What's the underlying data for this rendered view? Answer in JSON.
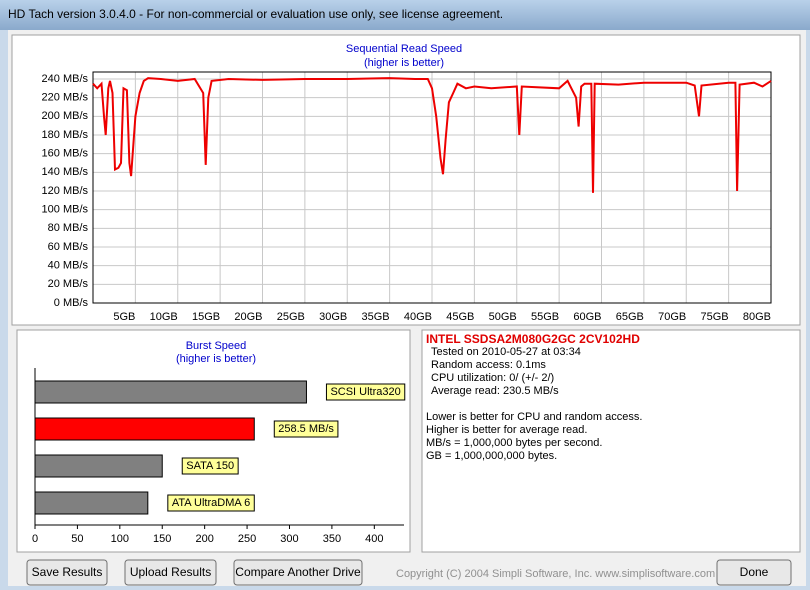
{
  "window": {
    "title": "HD Tach version 3.0.4.0  - For non-commercial or evaluation use only, see license agreement."
  },
  "chart_data": [
    {
      "type": "line",
      "title": "Sequential Read Speed",
      "subtitle": "(higher is better)",
      "color": "#ee0000",
      "grid": true,
      "x": [
        0,
        0.5,
        1,
        1.3,
        1.5,
        1.8,
        2,
        2.3,
        2.6,
        3,
        3.3,
        3.6,
        4,
        4.3,
        4.5,
        4.8,
        5,
        5.5,
        6,
        6.5,
        8,
        10,
        12,
        13,
        13.3,
        13.6,
        14,
        16,
        20,
        25,
        30,
        35,
        38,
        39.5,
        40,
        40.5,
        41,
        41.3,
        41.6,
        42,
        42.5,
        43,
        44,
        45,
        47,
        50,
        50.3,
        50.6,
        55,
        56,
        57,
        57.3,
        57.6,
        58,
        58.8,
        59,
        59.2,
        62,
        65,
        70,
        71,
        71.5,
        71.8,
        75,
        75.8,
        76,
        76.3,
        78,
        79,
        80
      ],
      "values": [
        235,
        230,
        235,
        200,
        180,
        230,
        238,
        225,
        143,
        145,
        150,
        230,
        228,
        150,
        136,
        175,
        200,
        225,
        238,
        241,
        240,
        238,
        240,
        225,
        148,
        220,
        238,
        240,
        239,
        240,
        240,
        241,
        240,
        240,
        230,
        200,
        155,
        138,
        175,
        215,
        225,
        235,
        230,
        232,
        230,
        232,
        180,
        232,
        230,
        238,
        220,
        189,
        232,
        235,
        235,
        118,
        235,
        234,
        236,
        236,
        233,
        200,
        233,
        236,
        236,
        120,
        234,
        236,
        232,
        238
      ],
      "xlim": [
        0,
        80
      ],
      "ylim": [
        0,
        247.5
      ],
      "xticks": [
        {
          "value": 5,
          "label": "5GB"
        },
        {
          "value": 10,
          "label": "10GB"
        },
        {
          "value": 15,
          "label": "15GB"
        },
        {
          "value": 20,
          "label": "20GB"
        },
        {
          "value": 25,
          "label": "25GB"
        },
        {
          "value": 30,
          "label": "30GB"
        },
        {
          "value": 35,
          "label": "35GB"
        },
        {
          "value": 40,
          "label": "40GB"
        },
        {
          "value": 45,
          "label": "45GB"
        },
        {
          "value": 50,
          "label": "50GB"
        },
        {
          "value": 55,
          "label": "55GB"
        },
        {
          "value": 60,
          "label": "60GB"
        },
        {
          "value": 65,
          "label": "65GB"
        },
        {
          "value": 70,
          "label": "70GB"
        },
        {
          "value": 75,
          "label": "75GB"
        },
        {
          "value": 80,
          "label": "80GB"
        }
      ],
      "yticks": [
        {
          "value": 0,
          "label": "0 MB/s"
        },
        {
          "value": 20,
          "label": "20 MB/s"
        },
        {
          "value": 40,
          "label": "40 MB/s"
        },
        {
          "value": 60,
          "label": "60 MB/s"
        },
        {
          "value": 80,
          "label": "80 MB/s"
        },
        {
          "value": 100,
          "label": "100 MB/s"
        },
        {
          "value": 120,
          "label": "120 MB/s"
        },
        {
          "value": 140,
          "label": "140 MB/s"
        },
        {
          "value": 160,
          "label": "160 MB/s"
        },
        {
          "value": 180,
          "label": "180 MB/s"
        },
        {
          "value": 200,
          "label": "200 MB/s"
        },
        {
          "value": 220,
          "label": "220 MB/s"
        },
        {
          "value": 240,
          "label": "240 MB/s"
        }
      ]
    },
    {
      "type": "barh",
      "title": "Burst Speed",
      "subtitle": "(higher is better)",
      "categories": [
        "SCSI Ultra320",
        null,
        "SATA 150",
        "ATA UltraDMA 6"
      ],
      "values": [
        320,
        258.5,
        150,
        133
      ],
      "value_labels": [
        null,
        "258.5 MB/s",
        null,
        null
      ],
      "colors": [
        "#808080",
        "#ff0000",
        "#808080",
        "#808080"
      ],
      "xlim": [
        0,
        435
      ],
      "xticks": [
        0,
        50,
        100,
        150,
        200,
        250,
        300,
        350,
        400
      ]
    }
  ],
  "info": {
    "title": "INTEL SSDSA2M080G2GC 2CV102HD",
    "lines": [
      "Tested on 2010-05-27 at 03:34",
      "Random access: 0.1ms",
      "CPU utilization: 0/ (+/- 2/)",
      "Average read: 230.5 MB/s"
    ],
    "notes": [
      "Lower is better for CPU and random access.",
      "Higher is better for average read.",
      "MB/s = 1,000,000 bytes per second.",
      "GB = 1,000,000,000 bytes."
    ]
  },
  "buttons": [
    "Save Results",
    "Upload Results",
    "Compare Another Drive",
    "Done"
  ],
  "copyright": "Copyright (C) 2004 Simpli Software, Inc. www.simplisoftware.com"
}
